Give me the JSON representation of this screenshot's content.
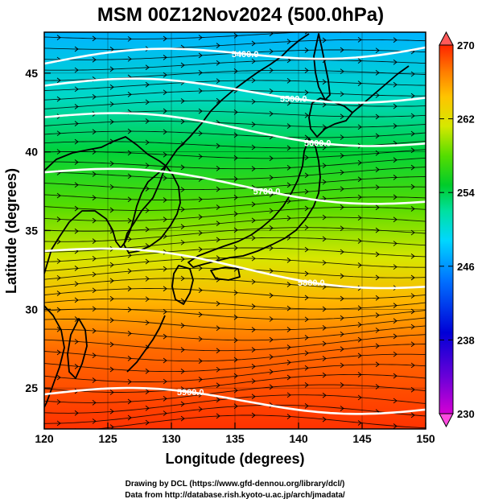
{
  "title": "MSM 00Z12Nov2024 (500.0hPa)",
  "xlabel": "Longitude (degrees)",
  "ylabel": "Latitude  (degrees)",
  "xticks": [
    120,
    125,
    130,
    135,
    140,
    145,
    150
  ],
  "yticks": [
    25,
    30,
    35,
    40,
    45
  ],
  "xlim": [
    120,
    150
  ],
  "ylim": [
    22.4,
    47.6
  ],
  "colorbar": {
    "min": 230,
    "max": 270,
    "ticks": [
      270,
      262,
      254,
      246,
      238,
      230
    ],
    "colors": [
      "#d400d4",
      "#6a00d8",
      "#0000d6",
      "#0070ff",
      "#00d7ff",
      "#00e0a0",
      "#00cc2a",
      "#55dd00",
      "#d6e800",
      "#ffc400",
      "#ff7a00",
      "#ff2400"
    ]
  },
  "contours": [
    {
      "label": "5400.0",
      "lat_start": 45.6,
      "lat_end": 46.8,
      "label_lon": 135.8
    },
    {
      "label": "5500.0",
      "lat_start": 44.2,
      "lat_end": 43.6,
      "label_lon": 139.6
    },
    {
      "label": "5600.0",
      "lat_start": 42.2,
      "lat_end": 40.7,
      "label_lon": 141.5
    },
    {
      "label": "5700.0",
      "lat_start": 38.7,
      "lat_end": 37.0,
      "label_lon": 137.5
    },
    {
      "label": "5800.0",
      "lat_start": 33.7,
      "lat_end": 31.6,
      "label_lon": 141.0
    },
    {
      "label": "5900.0",
      "lat_start": 24.6,
      "lat_end": 23.8,
      "label_lon": 131.5
    }
  ],
  "credits": {
    "line1": "Drawing by DCL (https://www.gfd-dennou.org/library/dcl/)",
    "line2": "Data from http://database.rish.kyoto-u.ac.jp/arch/jmadata/"
  }
}
